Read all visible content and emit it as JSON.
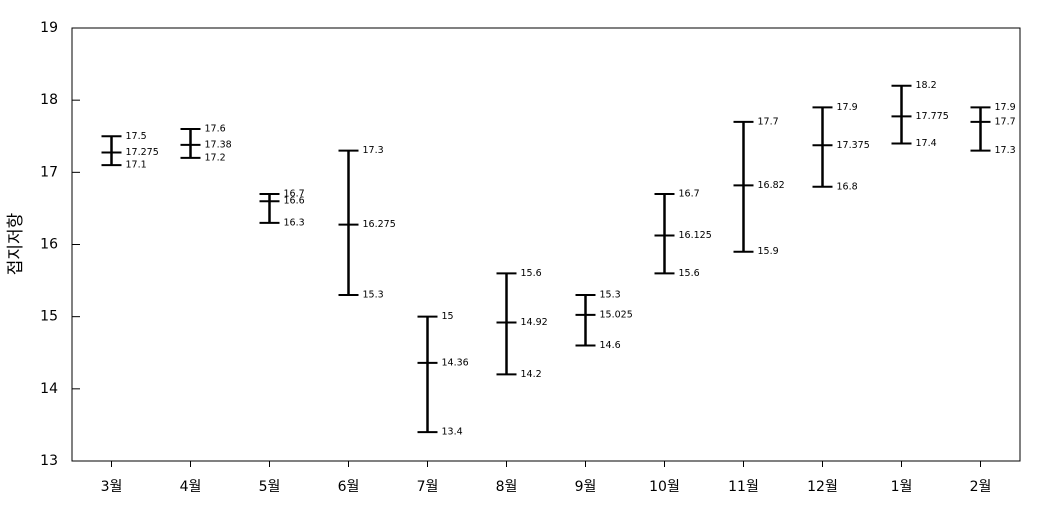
{
  "chart_data": {
    "type": "range",
    "y_label": "접지저항",
    "categories": [
      "3월",
      "4월",
      "5월",
      "6월",
      "7월",
      "8월",
      "9월",
      "10월",
      "11월",
      "12월",
      "1월",
      "2월"
    ],
    "max": [
      17.5,
      17.6,
      16.7,
      17.3,
      15,
      15.6,
      15.3,
      16.7,
      17.7,
      17.9,
      18.2,
      17.9
    ],
    "mean": [
      17.275,
      17.38,
      16.6,
      16.275,
      14.36,
      14.92,
      15.025,
      16.125,
      16.82,
      17.375,
      17.775,
      17.7
    ],
    "min": [
      17.1,
      17.2,
      16.3,
      15.3,
      13.4,
      14.2,
      14.6,
      15.6,
      15.9,
      16.8,
      17.4,
      17.3
    ],
    "color": "#000000",
    "ylim": [
      13,
      19
    ],
    "yticks": [
      13,
      14,
      15,
      16,
      17,
      18,
      19
    ]
  }
}
